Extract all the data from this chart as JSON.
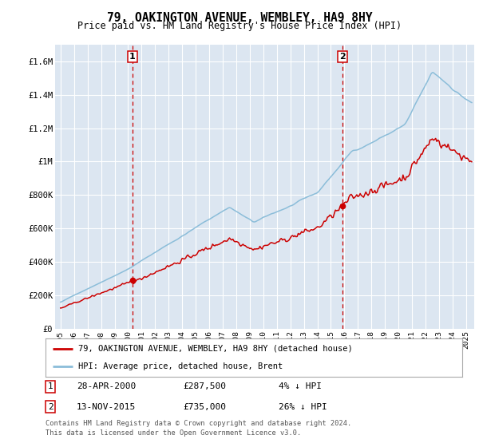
{
  "title": "79, OAKINGTON AVENUE, WEMBLEY, HA9 8HY",
  "subtitle": "Price paid vs. HM Land Registry's House Price Index (HPI)",
  "ylim": [
    0,
    1700000
  ],
  "yticks": [
    0,
    200000,
    400000,
    600000,
    800000,
    1000000,
    1200000,
    1400000,
    1600000
  ],
  "ytick_labels": [
    "£0",
    "£200K",
    "£400K",
    "£600K",
    "£800K",
    "£1M",
    "£1.2M",
    "£1.4M",
    "£1.6M"
  ],
  "background_color": "#ffffff",
  "plot_bg_color": "#dce6f1",
  "grid_color": "#ffffff",
  "hpi_color": "#8bbdd9",
  "price_color": "#cc0000",
  "sale1_x": 2000.32,
  "sale1_y": 287500,
  "sale1_label": "1",
  "sale1_date": "28-APR-2000",
  "sale1_price": "£287,500",
  "sale1_hpi": "4% ↓ HPI",
  "sale2_x": 2015.87,
  "sale2_y": 735000,
  "sale2_label": "2",
  "sale2_date": "13-NOV-2015",
  "sale2_price": "£735,000",
  "sale2_hpi": "26% ↓ HPI",
  "legend_line1": "79, OAKINGTON AVENUE, WEMBLEY, HA9 8HY (detached house)",
  "legend_line2": "HPI: Average price, detached house, Brent",
  "footer1": "Contains HM Land Registry data © Crown copyright and database right 2024.",
  "footer2": "This data is licensed under the Open Government Licence v3.0.",
  "xlim_left": 1994.6,
  "xlim_right": 2025.6
}
